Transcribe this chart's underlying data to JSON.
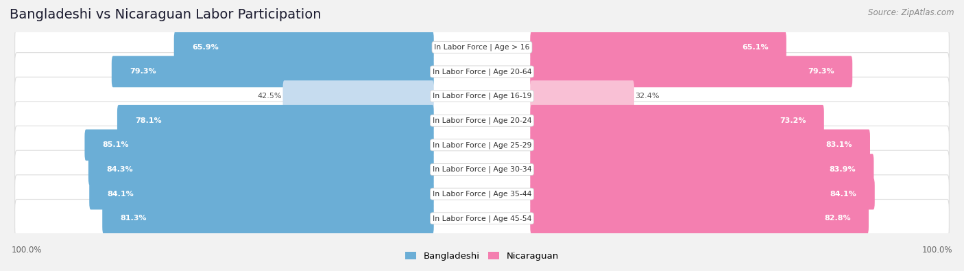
{
  "title": "Bangladeshi vs Nicaraguan Labor Participation",
  "source": "Source: ZipAtlas.com",
  "categories": [
    "In Labor Force | Age > 16",
    "In Labor Force | Age 20-64",
    "In Labor Force | Age 16-19",
    "In Labor Force | Age 20-24",
    "In Labor Force | Age 25-29",
    "In Labor Force | Age 30-34",
    "In Labor Force | Age 35-44",
    "In Labor Force | Age 45-54"
  ],
  "bangladeshi": [
    65.9,
    79.3,
    42.5,
    78.1,
    85.1,
    84.3,
    84.1,
    81.3
  ],
  "nicaraguan": [
    65.1,
    79.3,
    32.4,
    73.2,
    83.1,
    83.9,
    84.1,
    82.8
  ],
  "bangladeshi_color": "#6BAED6",
  "bangladeshi_color_light": "#C6DCEF",
  "nicaraguan_color": "#F47FB0",
  "nicaraguan_color_light": "#F9C0D5",
  "bg_color": "#F2F2F2",
  "row_bg_color": "#FFFFFF",
  "row_inner_bg": "#ECECEC",
  "title_color": "#1a1a2e",
  "source_color": "#888888",
  "max_val": 100.0,
  "legend_bangladeshi": "Bangladeshi",
  "legend_nicaraguan": "Nicaraguan",
  "axis_label": "100.0%"
}
